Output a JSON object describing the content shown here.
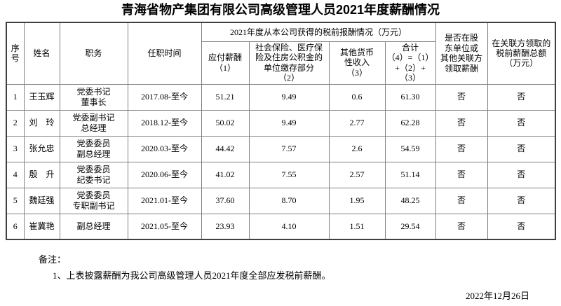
{
  "title": "青海省物产集团有限公司高级管理人员2021年度薪酬情况",
  "table": {
    "headers": {
      "no": "序\n号",
      "name": "姓名",
      "position": "职务",
      "tenure": "任职时间",
      "compensation_group": "2021年度从本公司获得的税前报酬情况（万元）",
      "salary": "应付薪酬\n（1）",
      "insurance": "社会保险、医疗保\n险及住房公积金的\n单位缴存部分\n（2）",
      "other_income": "其他货币\n性收入\n（3）",
      "total": "合计\n（4）=（1）\n+（2）+\n（3）",
      "related_party": "是否在股\n东单位或\n其他关联方\n领取薪酬",
      "related_amount": "在关联方领取的\n税前薪酬总额\n（万元）"
    },
    "column_keys": [
      "no",
      "name",
      "position",
      "tenure",
      "salary",
      "insurance",
      "other_income",
      "total",
      "related_party",
      "related_amount"
    ],
    "rows": [
      {
        "no": "1",
        "name": "王玉辉",
        "position": "党委书记\n董事长",
        "tenure": "2017.08-至今",
        "salary": "51.21",
        "insurance": "9.49",
        "other_income": "0.6",
        "total": "61.30",
        "related_party": "否",
        "related_amount": "否"
      },
      {
        "no": "2",
        "name": "刘　玲",
        "position": "党委副书记\n总经理",
        "tenure": "2018.12-至今",
        "salary": "50.02",
        "insurance": "9.49",
        "other_income": "2.77",
        "total": "62.28",
        "related_party": "否",
        "related_amount": "否"
      },
      {
        "no": "3",
        "name": "张允忠",
        "position": "党委委员\n副总经理",
        "tenure": "2020.03-至今",
        "salary": "44.42",
        "insurance": "7.57",
        "other_income": "2.6",
        "total": "54.59",
        "related_party": "否",
        "related_amount": "否"
      },
      {
        "no": "4",
        "name": "殷　升",
        "position": "党委委员\n纪委书记",
        "tenure": "2020.06-至今",
        "salary": "41.02",
        "insurance": "7.55",
        "other_income": "2.57",
        "total": "51.14",
        "related_party": "否",
        "related_amount": "否"
      },
      {
        "no": "5",
        "name": "魏廷强",
        "position": "党委委员\n专职副书记",
        "tenure": "2021.01-至今",
        "salary": "37.60",
        "insurance": "8.70",
        "other_income": "1.95",
        "total": "48.25",
        "related_party": "否",
        "related_amount": "否"
      },
      {
        "no": "6",
        "name": "崔冀艳",
        "position": "副总经理",
        "tenure": "2021.05-至今",
        "salary": "23.93",
        "insurance": "4.10",
        "other_income": "1.51",
        "total": "29.54",
        "related_party": "否",
        "related_amount": "否"
      }
    ]
  },
  "notes": {
    "label": "备注：",
    "items": [
      "1、上表披露薪酬为我公司高级管理人员2021年度全部应发税前薪酬。"
    ]
  },
  "date": "2022年12月26日"
}
